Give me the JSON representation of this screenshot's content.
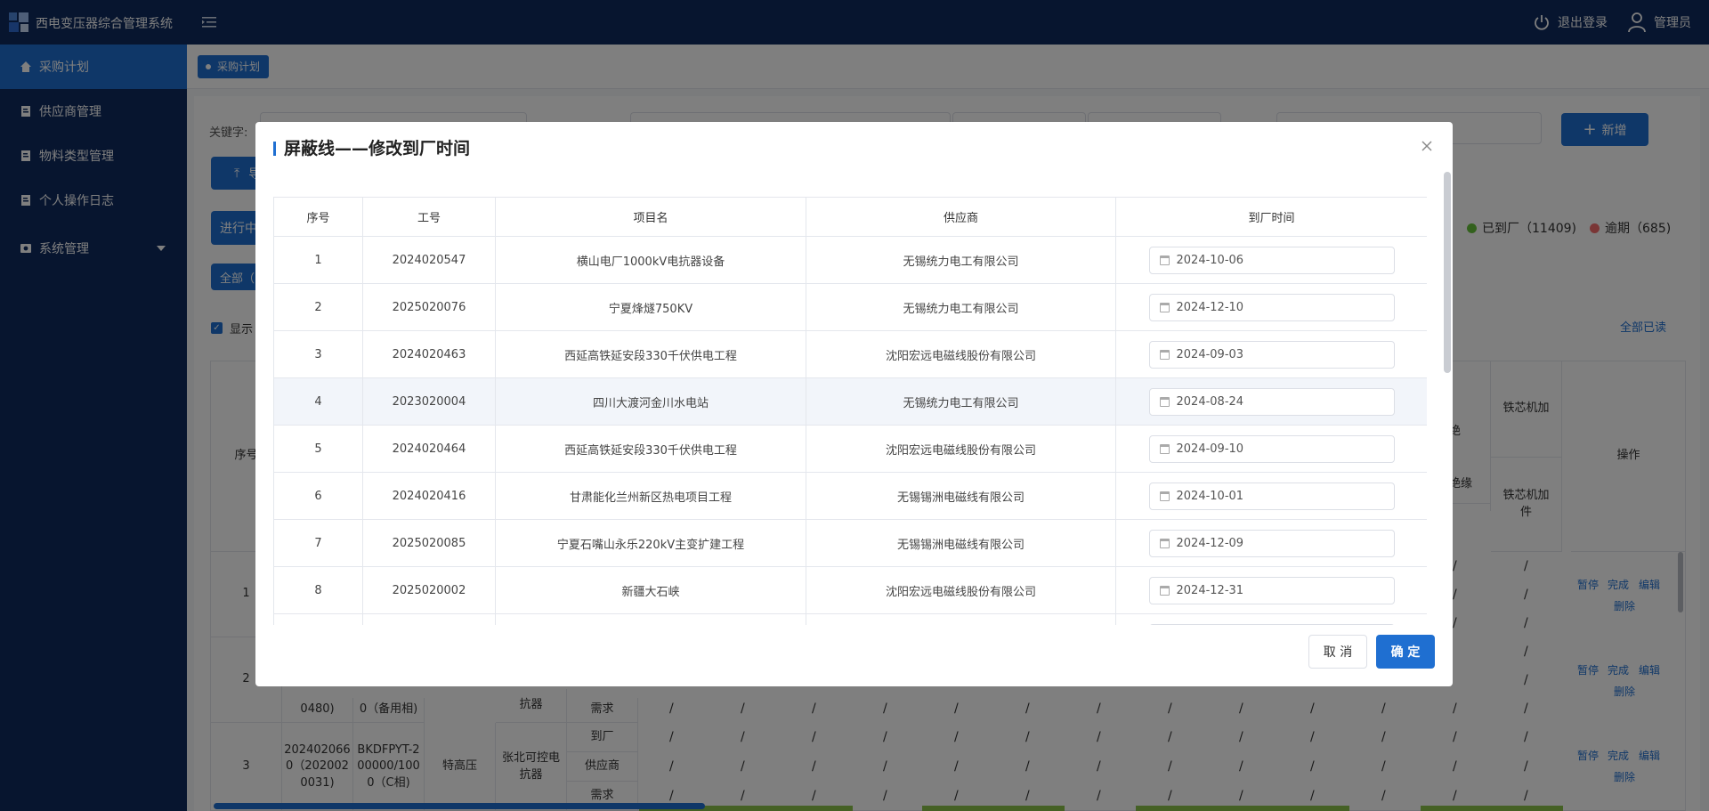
{
  "app": {
    "title": "西电变压器综合管理系统"
  },
  "topbar": {
    "logout_label": "退出登录",
    "user_label": "管理员"
  },
  "sidebar": {
    "items": [
      {
        "label": "采购计划"
      },
      {
        "label": "供应商管理"
      },
      {
        "label": "物料类型管理"
      },
      {
        "label": "个人操作日志"
      },
      {
        "label": "系统管理"
      }
    ]
  },
  "tabs": {
    "active_tag": "采购计划"
  },
  "filters": {
    "keyword_label": "关键字:",
    "add_button": "新增",
    "upload_button_partial": "导",
    "status_tab_partial": "进行中",
    "all_tab_partial": "全部（",
    "show_checkbox_partial": "显示",
    "select_all_link": "全部已读"
  },
  "legend": {
    "arrived": "已到厂（11409)",
    "overdue": "逾期（685)",
    "arrived_color": "#67c23a",
    "overdue_color": "#f56c6c"
  },
  "bg_table": {
    "seq_header": "序号",
    "ops_header": "操作",
    "col_a_header": "铁芯机加",
    "col_a_sub": "铁芯机加件",
    "col_b_header": "绝",
    "col_b_sub": "芯绝缘",
    "row_labels": [
      "1",
      "2",
      "3"
    ],
    "row2": {
      "col1": "0480)",
      "col2": "0（备用相)",
      "col4": "抗器"
    },
    "row3": {
      "col1": "202402066 0（202002 0031)",
      "col2": "BKDFPYT-2 00000/100 0（C相)",
      "col3": "特高压",
      "col4": "张北可控电抗器"
    },
    "sub_rows": [
      "到厂",
      "供应商",
      "需求"
    ],
    "ops": {
      "pause": "暂停",
      "done": "完成",
      "edit": "编辑",
      "delete": "删除"
    },
    "slash": "/"
  },
  "dialog": {
    "title": "屏蔽线——修改到厂时间",
    "columns": [
      "序号",
      "工号",
      "项目名",
      "供应商",
      "到厂时间"
    ],
    "rows": [
      {
        "seq": "1",
        "job_no": "2024020547",
        "project": "横山电厂1000kV电抗器设备",
        "supplier": "无锡统力电工有限公司",
        "date": "2024-10-06"
      },
      {
        "seq": "2",
        "job_no": "2025020076",
        "project": "宁夏烽燧750KV",
        "supplier": "无锡统力电工有限公司",
        "date": "2024-12-10"
      },
      {
        "seq": "3",
        "job_no": "2024020463",
        "project": "西延高铁延安段330千伏供电工程",
        "supplier": "沈阳宏远电磁线股份有限公司",
        "date": "2024-09-03"
      },
      {
        "seq": "4",
        "job_no": "2023020004",
        "project": "四川大渡河金川水电站",
        "supplier": "无锡统力电工有限公司",
        "date": "2024-08-24"
      },
      {
        "seq": "5",
        "job_no": "2024020464",
        "project": "西延高铁延安段330千伏供电工程",
        "supplier": "沈阳宏远电磁线股份有限公司",
        "date": "2024-09-10"
      },
      {
        "seq": "6",
        "job_no": "2024020416",
        "project": "甘肃能化兰州新区热电项目工程",
        "supplier": "无锡锡洲电磁线有限公司",
        "date": "2024-10-01"
      },
      {
        "seq": "7",
        "job_no": "2025020085",
        "project": "宁夏石嘴山永乐220kV主变扩建工程",
        "supplier": "无锡锡洲电磁线有限公司",
        "date": "2024-12-09"
      },
      {
        "seq": "8",
        "job_no": "2025020002",
        "project": "新疆大石峡",
        "supplier": "沈阳宏远电磁线股份有限公司",
        "date": "2024-12-31"
      }
    ],
    "cancel_label": "取 消",
    "ok_label": "确 定"
  }
}
